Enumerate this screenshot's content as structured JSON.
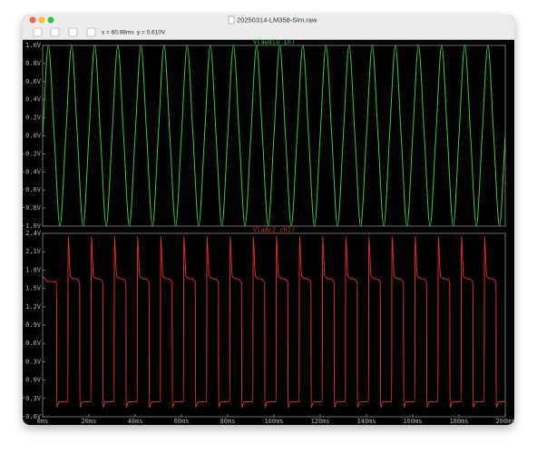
{
  "window": {
    "title": "20250314-LM358-Sim.raw",
    "toolbar": {
      "cursor_x": "x = 60.98ms",
      "cursor_y": "y = 0.610V"
    }
  },
  "chart_data": [
    {
      "type": "line",
      "x": [
        0,
        2.5,
        5,
        7.5,
        10,
        12.5,
        15,
        17.5,
        20,
        22.5,
        25,
        27.5,
        30,
        32.5,
        35,
        37.5,
        40,
        42.5,
        45,
        47.5,
        50,
        52.5,
        55,
        57.5,
        60,
        62.5,
        65,
        67.5,
        70,
        72.5,
        75,
        77.5,
        80,
        82.5,
        85,
        87.5,
        90,
        92.5,
        95,
        97.5,
        100,
        102.5,
        105,
        107.5,
        110,
        112.5,
        115,
        117.5,
        120,
        122.5,
        125,
        127.5,
        130,
        132.5,
        135,
        137.5,
        140,
        142.5,
        145,
        147.5,
        150,
        152.5,
        155,
        157.5,
        160,
        162.5,
        165,
        167.5,
        170,
        172.5,
        175,
        177.5,
        180,
        182.5,
        185,
        187.5,
        190,
        192.5,
        195,
        197.5,
        200
      ],
      "series": [
        {
          "name": "V(audio_in)",
          "color": "#3cc83c",
          "values": [
            0,
            1,
            0,
            -1,
            0,
            1,
            0,
            -1,
            0,
            1,
            0,
            -1,
            0,
            1,
            0,
            -1,
            0,
            1,
            0,
            -1,
            0,
            1,
            0,
            -1,
            0,
            1,
            0,
            -1,
            0,
            1,
            0,
            -1,
            0,
            1,
            0,
            -1,
            0,
            1,
            0,
            -1,
            0,
            1,
            0,
            -1,
            0,
            1,
            0,
            -1,
            0,
            1,
            0,
            -1,
            0,
            1,
            0,
            -1,
            0,
            1,
            0,
            -1,
            0,
            1,
            0,
            -1,
            0,
            1,
            0,
            -1,
            0,
            1,
            0,
            -1,
            0,
            1,
            0,
            -1,
            0,
            1,
            0,
            -1,
            0
          ]
        }
      ],
      "xlim": [
        0,
        200
      ],
      "ylim": [
        -1,
        1
      ],
      "yticks": [
        {
          "value": -1,
          "label": "-1.0V"
        },
        {
          "value": -0.8,
          "label": "-0.8V"
        },
        {
          "value": -0.6,
          "label": "-0.6V"
        },
        {
          "value": -0.4,
          "label": "-0.4V"
        },
        {
          "value": -0.2,
          "label": "-0.2V"
        },
        {
          "value": 0,
          "label": "0.0V"
        },
        {
          "value": 0.2,
          "label": "0.2V"
        },
        {
          "value": 0.4,
          "label": "0.4V"
        },
        {
          "value": 0.6,
          "label": "0.6V"
        },
        {
          "value": 0.8,
          "label": "0.8V"
        },
        {
          "value": 1,
          "label": "1.0V"
        }
      ]
    },
    {
      "type": "line",
      "x": [
        0,
        2,
        6,
        6.1,
        7,
        10.9,
        11,
        12,
        16,
        16.1,
        17,
        20.9,
        21,
        22,
        26,
        26.1,
        27,
        30.9,
        31,
        32,
        36,
        36.1,
        37,
        40.9,
        41,
        42,
        46,
        46.1,
        47,
        50.9,
        51,
        52,
        56,
        56.1,
        57,
        60.9,
        61,
        62,
        66,
        66.1,
        67,
        70.9,
        71,
        72,
        76,
        76.1,
        77,
        80.9,
        81,
        82,
        86,
        86.1,
        87,
        90.9,
        91,
        92,
        96,
        96.1,
        97,
        100.9,
        101,
        102,
        106,
        106.1,
        107,
        110.9,
        111,
        112,
        116,
        116.1,
        117,
        120.9,
        121,
        122,
        126,
        126.1,
        127,
        130.9,
        131,
        132,
        136,
        136.1,
        137,
        140.9,
        141,
        142,
        146,
        146.1,
        147,
        150.9,
        151,
        152,
        156,
        156.1,
        157,
        160.9,
        161,
        162,
        166,
        166.1,
        167,
        170.9,
        171,
        172,
        176,
        176.1,
        177,
        180.9,
        181,
        182,
        186,
        186.1,
        187,
        190.9,
        191,
        192,
        196,
        196.1,
        197,
        200
      ],
      "series": [
        {
          "name": "V(adc2_ch7)",
          "color": "#e0302a",
          "values": [
            1.7,
            1.62,
            1.6,
            -0.45,
            -0.36,
            -0.35,
            2.35,
            1.7,
            1.6,
            -0.45,
            -0.36,
            -0.35,
            2.35,
            1.7,
            1.6,
            -0.45,
            -0.36,
            -0.35,
            2.35,
            1.7,
            1.6,
            -0.45,
            -0.36,
            -0.35,
            2.35,
            1.7,
            1.6,
            -0.45,
            -0.36,
            -0.35,
            2.35,
            1.7,
            1.6,
            -0.45,
            -0.36,
            -0.35,
            2.35,
            1.7,
            1.6,
            -0.45,
            -0.36,
            -0.35,
            2.35,
            1.7,
            1.6,
            -0.45,
            -0.36,
            -0.35,
            2.35,
            1.7,
            1.6,
            -0.45,
            -0.36,
            -0.35,
            2.35,
            1.7,
            1.6,
            -0.45,
            -0.36,
            -0.35,
            2.35,
            1.7,
            1.6,
            -0.45,
            -0.36,
            -0.35,
            2.35,
            1.7,
            1.6,
            -0.45,
            -0.36,
            -0.35,
            2.35,
            1.7,
            1.6,
            -0.45,
            -0.36,
            -0.35,
            2.35,
            1.7,
            1.6,
            -0.45,
            -0.36,
            -0.35,
            2.35,
            1.7,
            1.6,
            -0.45,
            -0.36,
            -0.35,
            2.35,
            1.7,
            1.6,
            -0.45,
            -0.36,
            -0.35,
            2.35,
            1.7,
            1.6,
            -0.45,
            -0.36,
            -0.35,
            2.35,
            1.7,
            1.6,
            -0.45,
            -0.36,
            -0.35,
            2.35,
            1.7,
            1.6,
            -0.45,
            -0.36,
            -0.35,
            2.35,
            1.7,
            1.6,
            -0.45,
            -0.36,
            -0.35
          ]
        }
      ],
      "xlim": [
        0,
        200
      ],
      "ylim": [
        -0.6,
        2.4
      ],
      "xticks": [
        {
          "value": 0,
          "label": "0ms"
        },
        {
          "value": 20,
          "label": "20ms"
        },
        {
          "value": 40,
          "label": "40ms"
        },
        {
          "value": 60,
          "label": "60ms"
        },
        {
          "value": 80,
          "label": "80ms"
        },
        {
          "value": 100,
          "label": "100ms"
        },
        {
          "value": 120,
          "label": "120ms"
        },
        {
          "value": 140,
          "label": "140ms"
        },
        {
          "value": 160,
          "label": "160ms"
        },
        {
          "value": 180,
          "label": "180ms"
        },
        {
          "value": 200,
          "label": "200ms"
        }
      ],
      "yticks": [
        {
          "value": -0.6,
          "label": "-0.6V"
        },
        {
          "value": -0.3,
          "label": "-0.3V"
        },
        {
          "value": 0,
          "label": "0.0V"
        },
        {
          "value": 0.3,
          "label": "0.3V"
        },
        {
          "value": 0.6,
          "label": "0.6V"
        },
        {
          "value": 0.9,
          "label": "0.9V"
        },
        {
          "value": 1.2,
          "label": "1.2V"
        },
        {
          "value": 1.5,
          "label": "1.5V"
        },
        {
          "value": 1.8,
          "label": "1.8V"
        },
        {
          "value": 2.1,
          "label": "2.1V"
        },
        {
          "value": 2.4,
          "label": "2.4V"
        }
      ]
    }
  ]
}
